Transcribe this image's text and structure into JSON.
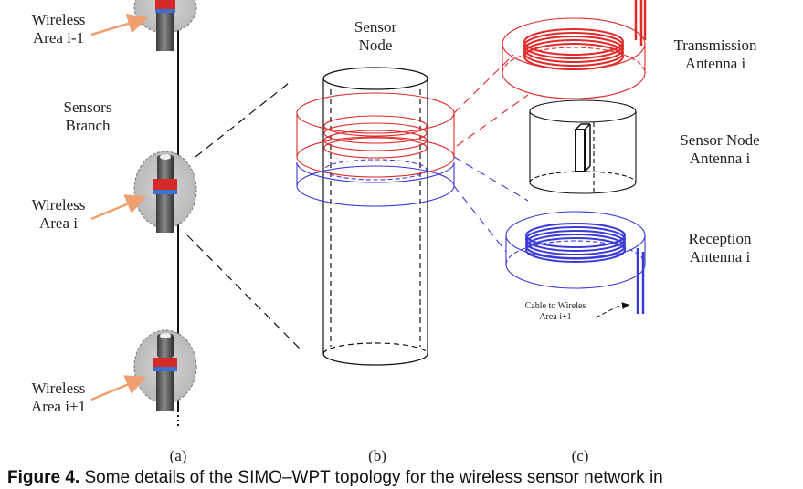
{
  "panel_a": {
    "label_top": [
      "Wireless",
      "Area i-1"
    ],
    "branch": [
      "Sensors",
      "Branch"
    ],
    "label_mid": [
      "Wireless",
      "Area i"
    ],
    "label_bot": [
      "Wireless",
      "Area i+1"
    ],
    "tag": "(a)"
  },
  "panel_b": {
    "title": [
      "Sensor",
      "Node"
    ],
    "tag": "(b)"
  },
  "panel_c": {
    "transmission": [
      "Transmission",
      "Antenna i"
    ],
    "sensor_antenna": [
      "Sensor Node",
      "Antenna i"
    ],
    "reception": [
      "Reception",
      "Antenna i"
    ],
    "cable": [
      "Cable to Wireles",
      "Area i+1"
    ],
    "tag": "(c)"
  },
  "colors": {
    "red": "#e02b2b",
    "blue": "#3a3ad6",
    "grey": "#bdbdbd",
    "orange": "#f0a070"
  },
  "caption": {
    "bold": "Figure 4.",
    "text": " Some details of the SIMO–WPT topology for the wireless sensor network in"
  }
}
